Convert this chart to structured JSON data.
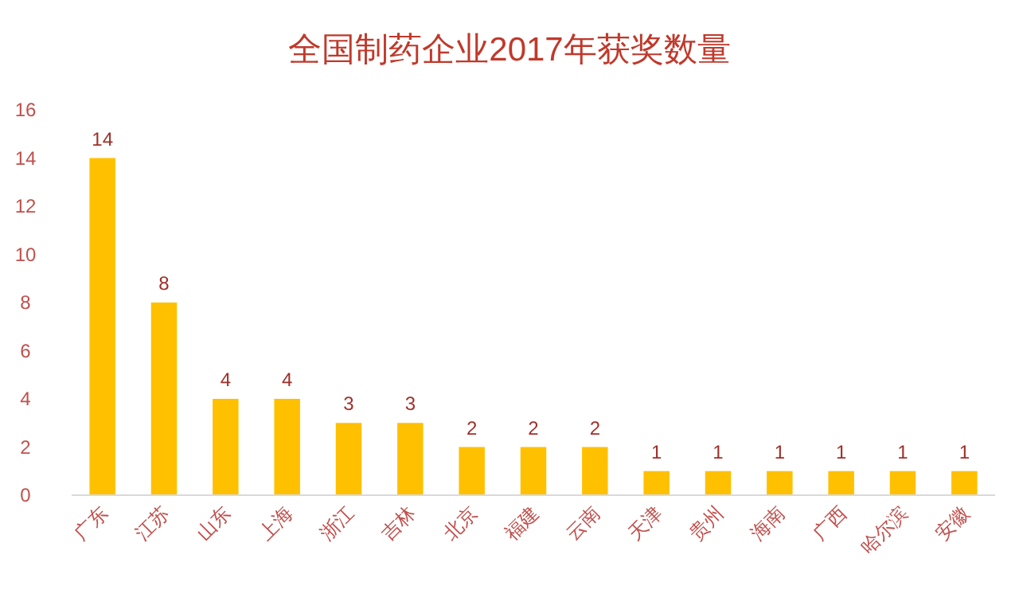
{
  "chart_data": {
    "type": "bar",
    "title": "全国制药企业2017年获奖数量",
    "categories": [
      "广东",
      "江苏",
      "山东",
      "上海",
      "浙江",
      "吉林",
      "北京",
      "福建",
      "云南",
      "天津",
      "贵州",
      "海南",
      "广西",
      "哈尔滨",
      "安徽"
    ],
    "values": [
      14,
      8,
      4,
      4,
      3,
      3,
      2,
      2,
      2,
      1,
      1,
      1,
      1,
      1,
      1
    ],
    "color": "#ffc000",
    "ylim": [
      0,
      16
    ],
    "yticks": [
      0,
      2,
      4,
      6,
      8,
      10,
      12,
      14,
      16
    ],
    "data_labels": true,
    "grid": false
  }
}
